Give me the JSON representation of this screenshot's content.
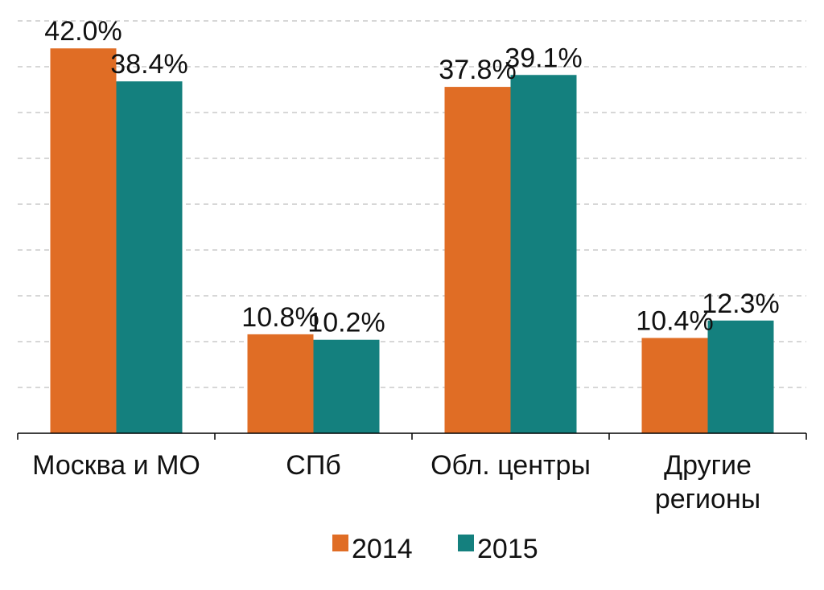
{
  "chart_data": {
    "type": "bar",
    "categories": [
      [
        "Москва и МО"
      ],
      [
        "СПб"
      ],
      [
        "Обл. центры"
      ],
      [
        "Другие",
        "регионы"
      ]
    ],
    "series": [
      {
        "name": "2014",
        "color": "#e06d25",
        "values": [
          42.0,
          10.8,
          37.8,
          10.4
        ],
        "labels": [
          "42.0%",
          "10.8%",
          "37.8%",
          "10.4%"
        ]
      },
      {
        "name": "2015",
        "color": "#14807e",
        "values": [
          38.4,
          10.2,
          39.1,
          12.3
        ],
        "labels": [
          "38.4%",
          "10.2%",
          "39.1%",
          "12.3%"
        ]
      }
    ],
    "ylim": [
      0,
      45
    ],
    "grid": true,
    "legend": "bottom"
  }
}
